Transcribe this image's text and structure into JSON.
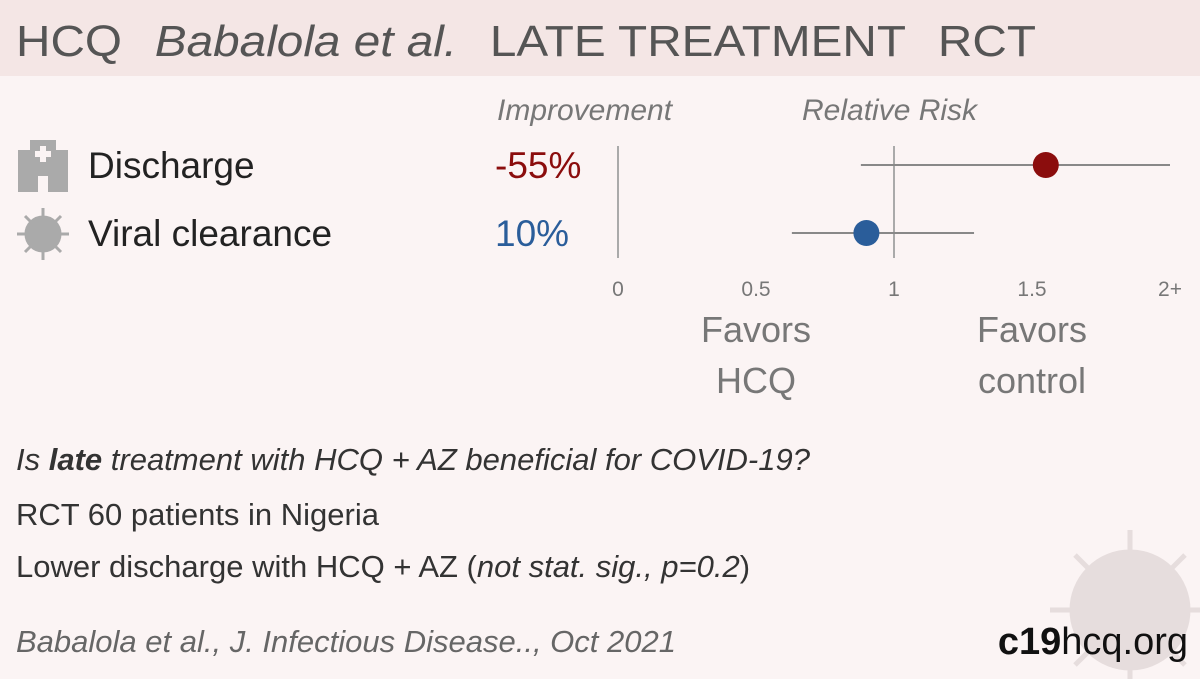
{
  "title": {
    "drug": "HCQ",
    "authors": "Babalola et al.",
    "stage": "LATE TREATMENT",
    "design": "RCT"
  },
  "chart_data": {
    "type": "forest",
    "column_titles": {
      "improvement": "Improvement",
      "relative_risk": "Relative Risk"
    },
    "categories": [
      "Discharge",
      "Viral clearance"
    ],
    "values": [
      1.55,
      0.9
    ],
    "ci_low": [
      0.88,
      0.63
    ],
    "ci_high": [
      2.0,
      1.29
    ],
    "colors": [
      "#8b0d0d",
      "#2a5d9a"
    ],
    "improvement": {
      "values": [
        -55,
        10
      ],
      "value_labels": [
        "-55%",
        "10%"
      ]
    },
    "xlim": [
      0,
      2
    ],
    "xticks": [
      0,
      0.5,
      1,
      1.5,
      {
        "value": 2,
        "label": "2+"
      }
    ],
    "favors_left": [
      "Favors",
      "HCQ"
    ],
    "favors_right": [
      "Favors",
      "control"
    ]
  },
  "summary": {
    "question": [
      "Is ",
      "late",
      " treatment with HCQ + AZ beneficial for COVID-19?"
    ],
    "design": "RCT 60 patients in Nigeria",
    "result": [
      "Lower discharge with HCQ + AZ (",
      "not stat. sig., p=0.2",
      ")"
    ]
  },
  "footer": {
    "citation": "Babalola et al., J. Infectious Disease.., Oct 2021",
    "brand": [
      "c19",
      "hcq.org"
    ]
  }
}
